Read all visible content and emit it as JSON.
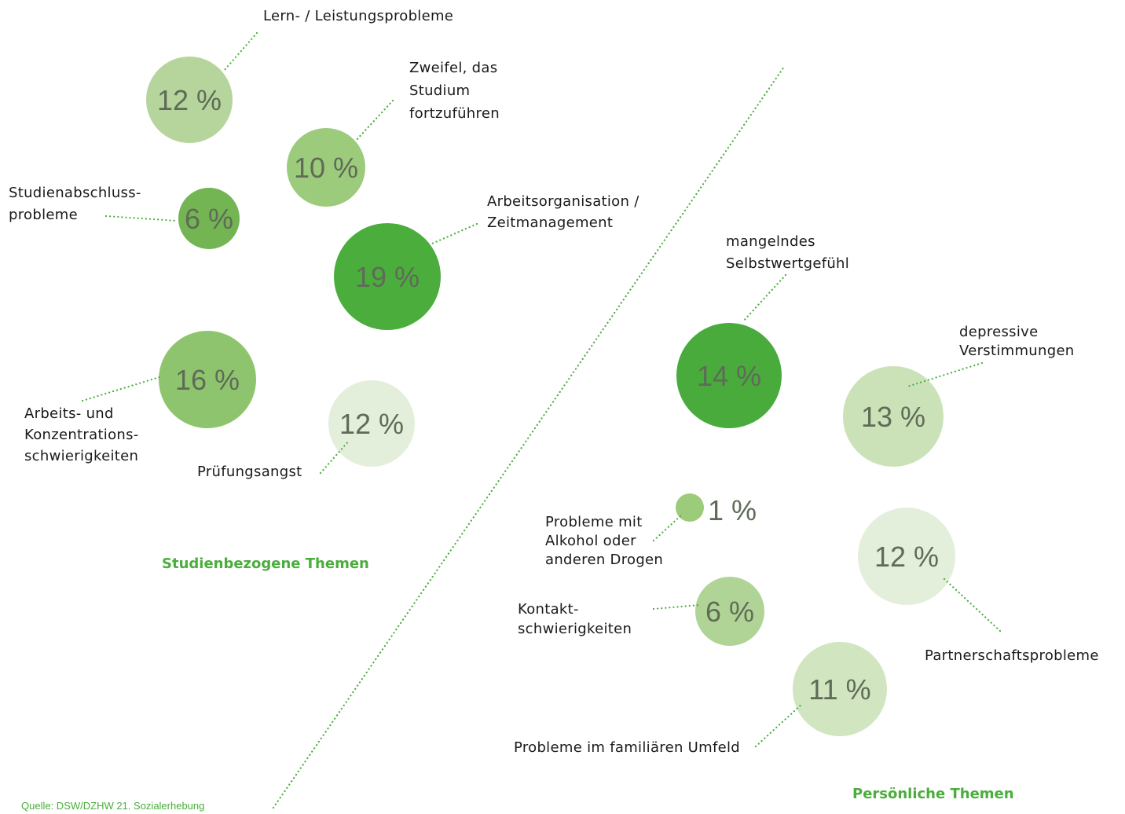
{
  "groups": [
    {
      "title": "Studienbezogene Themen",
      "items": [
        {
          "lines": [
            "Lern- / Leistungsprobleme"
          ],
          "value": "12 %",
          "color": "#b5d59c"
        },
        {
          "lines": [
            "Zweifel, das",
            "Studium",
            "fortzuführen"
          ],
          "value": "10 %",
          "color": "#9ccb7c"
        },
        {
          "lines": [
            "Studienabschluss-",
            "probleme"
          ],
          "value": "6 %",
          "color": "#72b552"
        },
        {
          "lines": [
            "Arbeitsorganisation /",
            "Zeitmanagement"
          ],
          "value": "19 %",
          "color": "#4aad3c"
        },
        {
          "lines": [
            "Arbeits- und",
            "Konzentrations-",
            "schwierigkeiten"
          ],
          "value": "16 %",
          "color": "#8ec46e"
        },
        {
          "lines": [
            "Prüfungsangst"
          ],
          "value": "12 %",
          "color": "#e3eedb"
        }
      ]
    },
    {
      "title": "Persönliche Themen",
      "items": [
        {
          "lines": [
            "mangelndes",
            "Selbstwertgefühl"
          ],
          "value": "14 %",
          "color": "#48ab3c"
        },
        {
          "lines": [
            "depressive",
            "Verstimmungen"
          ],
          "value": "13 %",
          "color": "#cbe2b9"
        },
        {
          "lines": [
            "Probleme mit",
            "Alkohol oder",
            "anderen Drogen"
          ],
          "value": "1 %",
          "color": "#9ccb7c"
        },
        {
          "lines": [
            "Kontakt-",
            "schwierigkeiten"
          ],
          "value": "6 %",
          "color": "#b0d495"
        },
        {
          "lines": [
            "Partnerschaftsprobleme"
          ],
          "value": "12 %",
          "color": "#e3eedb"
        },
        {
          "lines": [
            "Probleme im familiären Umfeld"
          ],
          "value": "11 %",
          "color": "#d0e5c0"
        }
      ]
    }
  ],
  "source": "Quelle: DSW/DZHW 21. Sozialerhebung"
}
